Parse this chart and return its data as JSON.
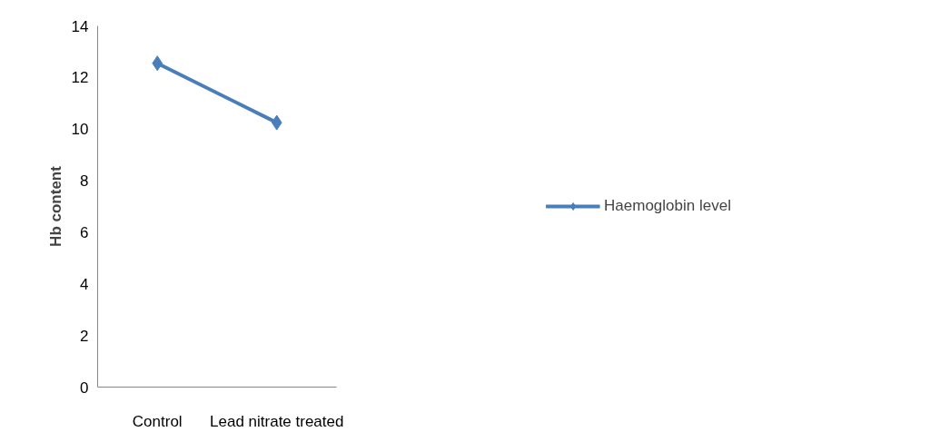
{
  "chart_data": {
    "type": "line",
    "ylabel": "Hb content",
    "categories": [
      "Control",
      "Lead nitrate treated"
    ],
    "series": [
      {
        "name": "Haemoglobin level",
        "color": "#4a7ebb",
        "values": [
          12.55,
          10.25
        ]
      }
    ],
    "ylim": [
      0,
      14
    ],
    "yticks": [
      0,
      2,
      4,
      6,
      8,
      10,
      12,
      14
    ],
    "grid": false,
    "legend": "right",
    "marker": "diamond",
    "line_style": "solid"
  }
}
